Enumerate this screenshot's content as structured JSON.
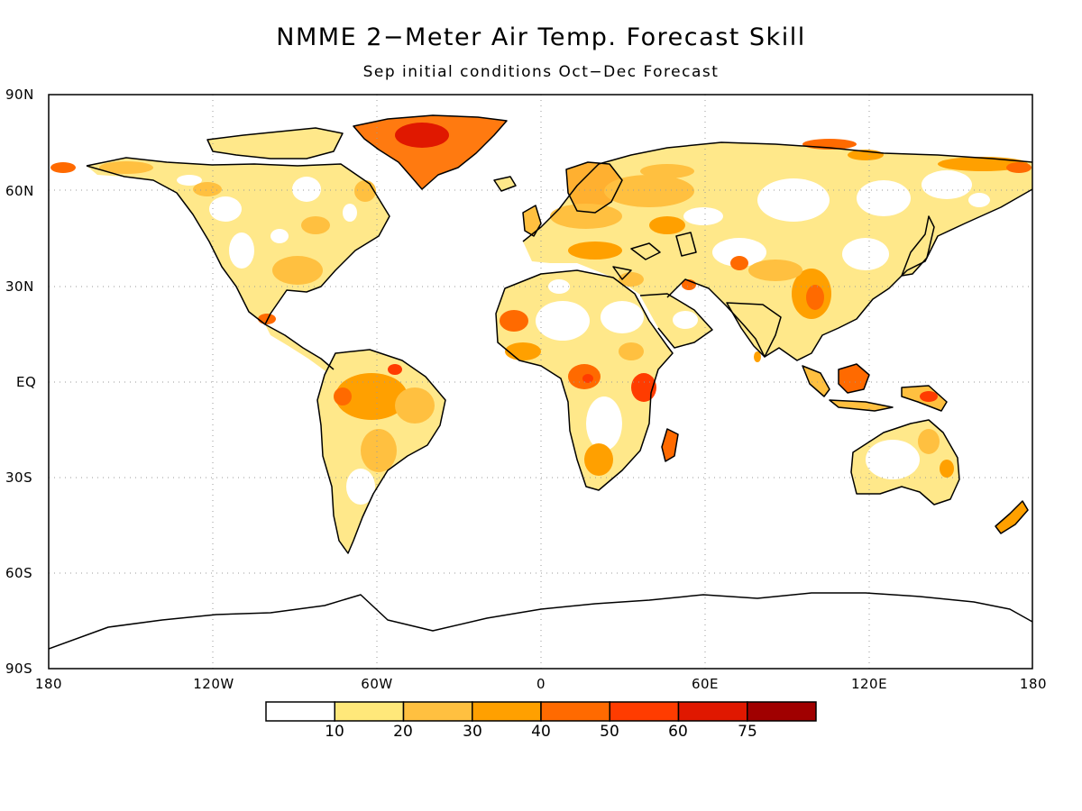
{
  "title": "NMME 2−Meter Air Temp. Forecast Skill",
  "subtitle": "Sep initial conditions   Oct−Dec Forecast",
  "lat_ticks": [
    "90N",
    "60N",
    "30N",
    "EQ",
    "30S",
    "60S",
    "90S"
  ],
  "lon_ticks": [
    "180",
    "120W",
    "60W",
    "0",
    "60E",
    "120E",
    "180"
  ],
  "colorbar": {
    "boundary_labels": [
      "10",
      "20",
      "30",
      "40",
      "50",
      "60",
      "75"
    ],
    "colors": [
      "#ffffff",
      "#ffe87a",
      "#ffc040",
      "#ffa000",
      "#ff6a00",
      "#ff3c00",
      "#e01800",
      "#a00000"
    ]
  },
  "colors": {
    "land_outline": "#000000",
    "grid": "#9a9a9a"
  }
}
